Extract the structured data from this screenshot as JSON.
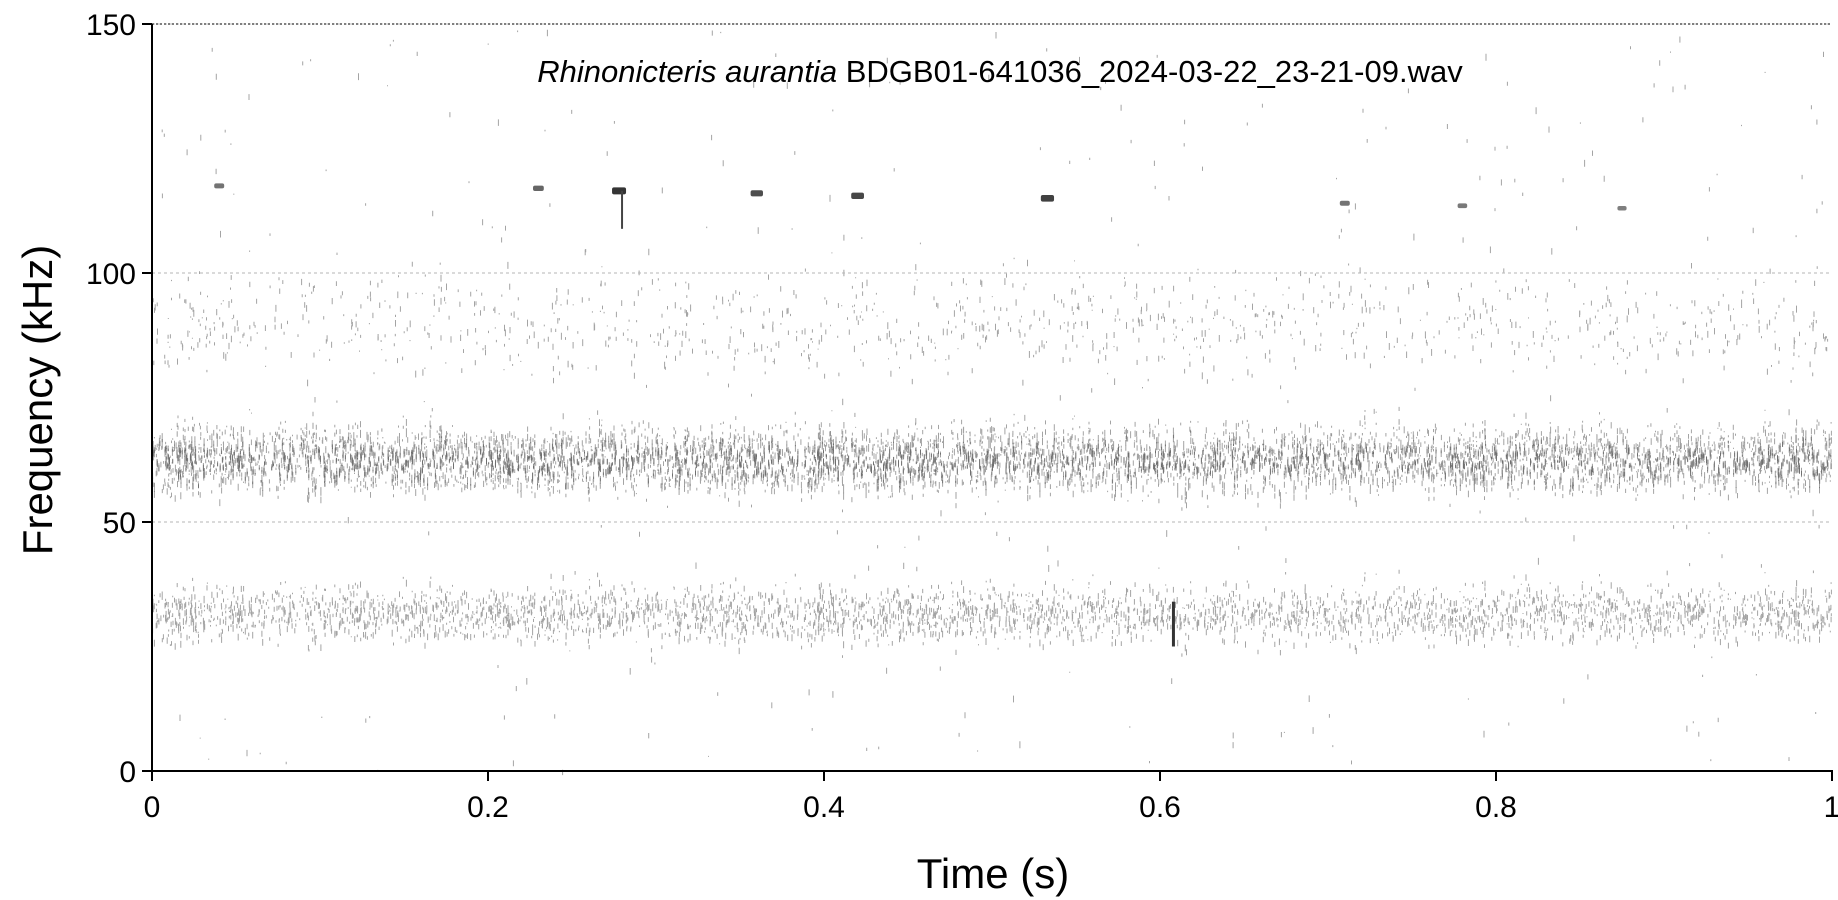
{
  "chart_data": {
    "type": "spectrogram",
    "title_species": "Rhinonicteris aurantia",
    "title_file": "BDGB01-641036_2024-03-22_23-21-09.wav",
    "xlabel": "Time (s)",
    "ylabel": "Frequency (kHz)",
    "xlim": [
      0,
      1
    ],
    "ylim": [
      0,
      150
    ],
    "x_ticks": [
      0,
      0.2,
      0.4,
      0.6,
      0.8,
      1
    ],
    "x_tick_labels": [
      "0",
      "0.2",
      "0.4",
      "0.6",
      "0.8",
      "1"
    ],
    "y_ticks": [
      0,
      50,
      100,
      150
    ],
    "y_tick_labels": [
      "0",
      "50",
      "100",
      "150"
    ],
    "gridlines_kHz": [
      50,
      100,
      150
    ],
    "grid": "horizontal-dotted",
    "noise_bands": [
      {
        "low_kHz": 58,
        "high_kHz": 70,
        "center_kHz": 63,
        "density": 1.0
      },
      {
        "low_kHz": 28,
        "high_kHz": 38,
        "center_kHz": 32,
        "density": 0.55
      },
      {
        "low_kHz": 80,
        "high_kHz": 98,
        "center_kHz": 90,
        "density": 0.15
      },
      {
        "low_kHz": 0,
        "high_kHz": 150,
        "center_kHz": 75,
        "density": 0.06
      }
    ],
    "calls": [
      {
        "t": 0.04,
        "f_kHz": 117.5,
        "intensity": 0.5
      },
      {
        "t": 0.23,
        "f_kHz": 117.0,
        "intensity": 0.6
      },
      {
        "t": 0.278,
        "f_kHz": 116.5,
        "intensity": 1.0
      },
      {
        "t": 0.36,
        "f_kHz": 116.0,
        "intensity": 0.8
      },
      {
        "t": 0.42,
        "f_kHz": 115.5,
        "intensity": 0.85
      },
      {
        "t": 0.533,
        "f_kHz": 115.0,
        "intensity": 0.9
      },
      {
        "t": 0.71,
        "f_kHz": 114.0,
        "intensity": 0.5
      },
      {
        "t": 0.78,
        "f_kHz": 113.5,
        "intensity": 0.45
      },
      {
        "t": 0.875,
        "f_kHz": 113.0,
        "intensity": 0.4
      }
    ],
    "transient": {
      "t": 0.608,
      "f_low_kHz": 25,
      "f_high_kHz": 34
    }
  }
}
